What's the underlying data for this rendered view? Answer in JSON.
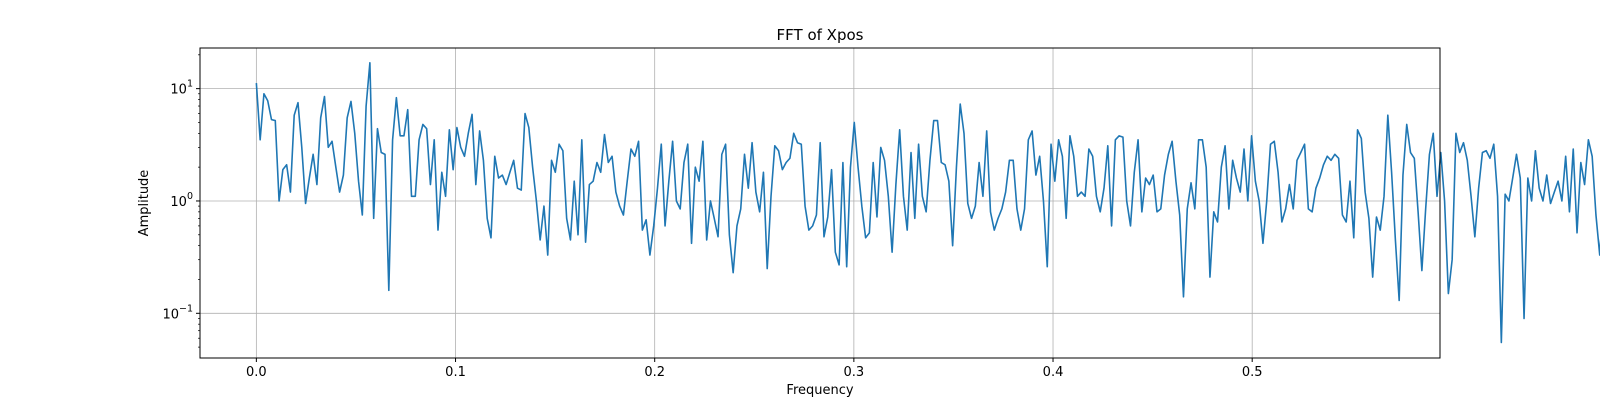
{
  "chart_data": {
    "type": "line",
    "title": "FFT of Xpos",
    "xlabel": "Frequency",
    "ylabel": "Amplitude",
    "xlim": [
      -0.0283,
      0.5943
    ],
    "ylim": [
      0.04,
      23
    ],
    "yscale": "log",
    "grid": true,
    "color": "#1f77b4",
    "x_ticks": [
      {
        "value": 0.0,
        "label": "0.0"
      },
      {
        "value": 0.1,
        "label": "0.1"
      },
      {
        "value": 0.2,
        "label": "0.2"
      },
      {
        "value": 0.3,
        "label": "0.3"
      },
      {
        "value": 0.4,
        "label": "0.4"
      },
      {
        "value": 0.5,
        "label": "0.5"
      }
    ],
    "y_ticks": [
      {
        "value": 0.1,
        "base": "10",
        "exp": "−1"
      },
      {
        "value": 1,
        "base": "10",
        "exp": "0"
      },
      {
        "value": 10,
        "base": "10",
        "exp": "1"
      }
    ],
    "series": [
      {
        "x_start": 0.0,
        "x_step": 0.0019,
        "values": [
          11.2,
          3.5,
          9.0,
          7.8,
          5.3,
          5.2,
          1.0,
          1.9,
          2.1,
          1.2,
          5.8,
          7.5,
          3.0,
          0.95,
          1.6,
          2.6,
          1.4,
          5.5,
          8.5,
          3.0,
          3.4,
          2.0,
          1.2,
          1.7,
          5.5,
          7.7,
          4.0,
          1.5,
          0.75,
          7.0,
          17.0,
          0.7,
          4.4,
          2.7,
          2.6,
          0.16,
          3.5,
          8.3,
          3.8,
          3.8,
          6.5,
          1.1,
          1.1,
          3.5,
          4.8,
          4.4,
          1.4,
          3.5,
          0.55,
          1.8,
          1.1,
          4.3,
          1.9,
          4.5,
          3.0,
          2.5,
          4.0,
          5.9,
          1.4,
          4.2,
          2.3,
          0.7,
          0.47,
          2.5,
          1.6,
          1.7,
          1.4,
          1.8,
          2.3,
          1.3,
          1.25,
          6.0,
          4.5,
          2.0,
          1.0,
          0.45,
          0.9,
          0.33,
          2.3,
          1.8,
          3.2,
          2.8,
          0.7,
          0.45,
          1.5,
          0.5,
          3.5,
          0.43,
          1.4,
          1.5,
          2.2,
          1.8,
          3.9,
          2.2,
          2.5,
          1.2,
          0.9,
          0.75,
          1.5,
          2.9,
          2.5,
          3.4,
          0.55,
          0.68,
          0.33,
          0.6,
          1.3,
          3.2,
          0.6,
          1.5,
          3.4,
          1.0,
          0.85,
          2.2,
          3.2,
          0.42,
          2.0,
          1.5,
          3.4,
          0.45,
          1.0,
          0.7,
          0.48,
          2.6,
          3.2,
          0.5,
          0.23,
          0.6,
          0.85,
          2.6,
          1.3,
          3.3,
          1.2,
          0.8,
          1.8,
          0.25,
          1.1,
          3.1,
          2.8,
          1.9,
          2.2,
          2.4,
          4.0,
          3.3,
          3.2,
          0.9,
          0.55,
          0.6,
          0.75,
          3.3,
          0.48,
          0.72,
          1.9,
          0.35,
          0.27,
          2.2,
          0.26,
          2.0,
          5.0,
          2.0,
          0.9,
          0.47,
          0.52,
          2.2,
          0.72,
          3.0,
          2.3,
          1.1,
          0.35,
          1.4,
          4.3,
          1.1,
          0.55,
          2.7,
          0.7,
          3.2,
          1.1,
          0.8,
          2.3,
          5.2,
          5.2,
          2.2,
          2.1,
          1.5,
          0.4,
          2.0,
          7.3,
          4.0,
          0.95,
          0.7,
          0.9,
          2.2,
          1.1,
          4.2,
          0.8,
          0.55,
          0.7,
          0.85,
          1.2,
          2.3,
          2.3,
          0.85,
          0.55,
          0.85,
          3.5,
          4.2,
          1.7,
          2.5,
          1.0,
          0.26,
          3.2,
          1.5,
          3.5,
          2.5,
          0.7,
          3.8,
          2.5,
          1.1,
          1.2,
          1.1,
          2.9,
          2.5,
          1.1,
          0.8,
          1.3,
          3.1,
          0.6,
          3.5,
          3.8,
          3.7,
          1.0,
          0.6,
          1.8,
          3.5,
          0.8,
          1.6,
          1.4,
          1.7,
          0.8,
          0.85,
          1.7,
          2.6,
          3.4,
          1.5,
          0.75,
          0.14,
          0.85,
          1.45,
          0.85,
          3.5,
          3.5,
          2.0,
          0.21,
          0.8,
          0.65,
          2.0,
          3.1,
          0.85,
          2.3,
          1.6,
          1.2,
          2.9,
          1.0,
          3.8,
          1.5,
          1.0,
          0.42,
          1.0,
          3.2,
          3.4,
          1.8,
          0.65,
          0.85,
          1.4,
          0.85,
          2.3,
          2.7,
          3.2,
          0.85,
          0.8,
          1.3,
          1.6,
          2.1,
          2.5,
          2.3,
          2.6,
          2.4,
          0.75,
          0.65,
          1.5,
          0.47,
          4.3,
          3.6,
          1.2,
          0.7,
          0.21,
          0.72,
          0.55,
          1.1,
          5.8,
          1.8,
          0.45,
          0.13,
          1.7,
          4.8,
          2.7,
          2.4,
          0.8,
          0.24,
          0.85,
          2.6,
          4.0,
          1.1,
          2.7,
          1.0,
          0.15,
          0.3,
          4.0,
          2.7,
          3.3,
          2.3,
          1.1,
          0.48,
          1.3,
          2.7,
          2.8,
          2.4,
          3.2,
          1.1,
          0.055,
          1.15,
          1.0,
          1.6,
          2.6,
          1.6,
          0.09,
          1.6,
          1.0,
          2.8,
          1.3,
          1.0,
          1.7,
          0.95,
          1.2,
          1.5,
          1.0,
          2.5,
          0.8,
          2.9,
          0.52,
          2.2,
          1.4,
          3.5,
          2.5,
          0.75,
          0.33,
          1.1,
          4.0,
          0.7,
          1.8,
          1.6,
          1.2,
          0.8,
          1.6,
          1.5,
          2.5,
          5.5,
          3.4,
          0.95,
          0.55,
          0.8,
          2.5,
          4.5,
          2.3,
          2.3,
          0.5,
          0.65,
          0.12,
          3.3,
          3.8,
          1.9,
          3.8,
          0.6,
          0.6,
          0.7,
          1.7,
          2.0,
          2.3,
          1.4,
          0.85,
          0.33,
          0.65,
          1.5,
          5.0,
          4.0,
          1.5,
          2.0,
          1.0
        ]
      }
    ]
  }
}
